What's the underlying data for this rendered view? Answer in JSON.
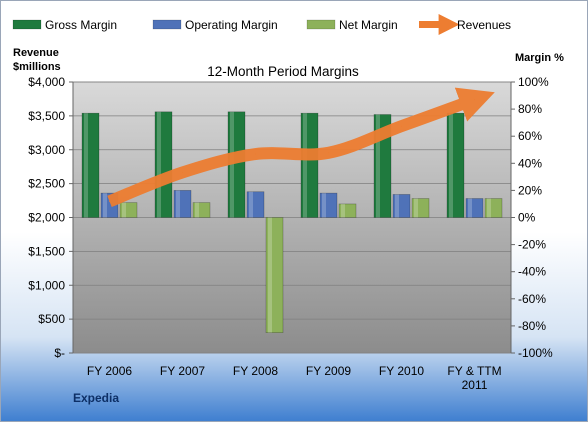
{
  "chart_data": {
    "type": "bar",
    "title": "12-Month Period Margins",
    "company": "Expedia",
    "y_left_label": [
      "Revenue",
      "$millions"
    ],
    "y_right_label": "Margin %",
    "categories": [
      "FY 2006",
      "FY 2007",
      "FY 2008",
      "FY 2009",
      "FY 2010",
      "FY & TTM 2011"
    ],
    "left_axis": {
      "ylim": [
        0,
        4000
      ],
      "ticks": [
        0,
        500,
        1000,
        1500,
        2000,
        2500,
        3000,
        3500,
        4000
      ],
      "tick_labels": [
        "$-",
        "$500",
        "$1,000",
        "$1,500",
        "$2,000",
        "$2,500",
        "$3,000",
        "$3,500",
        "$4,000"
      ]
    },
    "right_axis": {
      "ylim": [
        -100,
        100
      ],
      "ticks": [
        -100,
        -80,
        -60,
        -40,
        -20,
        0,
        20,
        40,
        60,
        80,
        100
      ],
      "tick_labels": [
        "-100%",
        "-80%",
        "-60%",
        "-40%",
        "-20%",
        "0%",
        "20%",
        "40%",
        "60%",
        "80%",
        "100%"
      ]
    },
    "series": [
      {
        "name": "Gross Margin",
        "axis": "right",
        "kind": "bar",
        "color": "#1f7a3e",
        "values": [
          77,
          78,
          78,
          77,
          76,
          77
        ]
      },
      {
        "name": "Operating Margin",
        "axis": "right",
        "kind": "bar",
        "color": "#4f72b8",
        "values": [
          18,
          20,
          19,
          18,
          17,
          14
        ]
      },
      {
        "name": "Net Margin",
        "axis": "right",
        "kind": "bar",
        "color": "#8db15a",
        "values": [
          11,
          11,
          -85,
          10,
          14,
          14
        ]
      },
      {
        "name": "Revenues",
        "axis": "left",
        "kind": "line",
        "color": "#ed7d31",
        "values": [
          2238,
          2665,
          2937,
          2955,
          3348,
          3740
        ]
      }
    ],
    "legend_position": "top",
    "grid": true
  }
}
